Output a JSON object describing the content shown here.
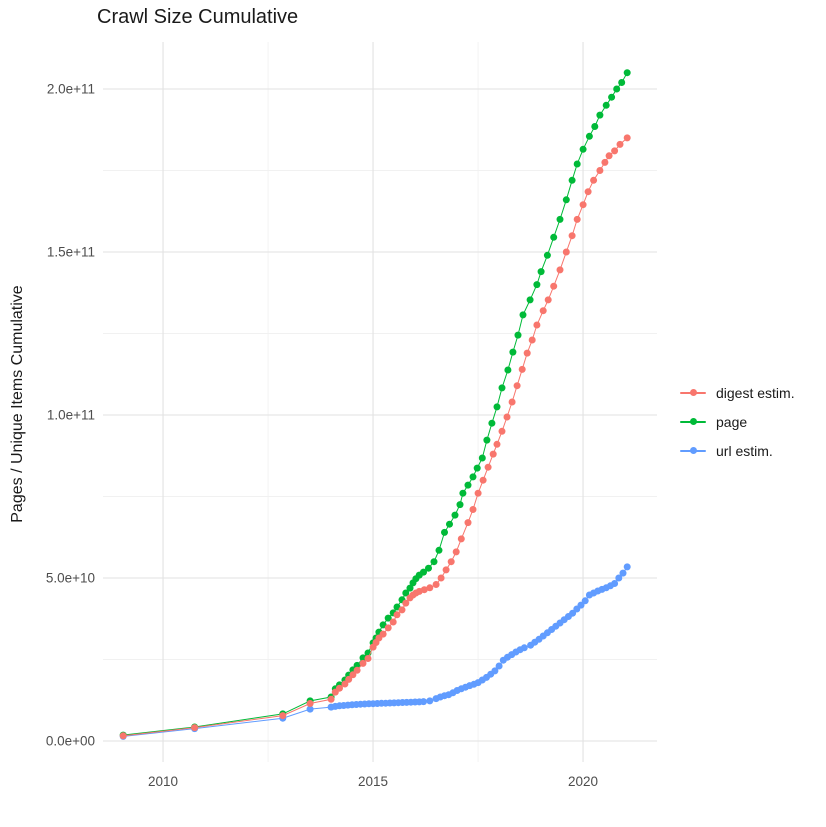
{
  "chart_data": {
    "type": "scatter",
    "title": "Crawl Size Cumulative",
    "ylabel": "Pages / Unique Items Cumulative",
    "xlabel": "",
    "value_unit": "points are [year, value_in_billions]; 1 billion = 1e9",
    "legend_position": "right",
    "grid": "on",
    "style": {
      "background": "#ffffff",
      "grid_major": "#e2e2e2",
      "grid_minor": "#f1f1f1",
      "text": "#4d4d4d"
    },
    "x_axis": {
      "range": [
        2008.57,
        2021.76
      ],
      "ticks": [
        {
          "value": 2010,
          "label": "2010"
        },
        {
          "value": 2015,
          "label": "2015"
        },
        {
          "value": 2020,
          "label": "2020"
        }
      ],
      "minor": [
        2012.5,
        2017.5
      ]
    },
    "y_axis": {
      "range": [
        -6400000000.0,
        214400000000.0
      ],
      "ticks": [
        {
          "value": 0.0,
          "label": "0.0e+00"
        },
        {
          "value": 50000000000.0,
          "label": "5.0e+10"
        },
        {
          "value": 100000000000.0,
          "label": "1.0e+11"
        },
        {
          "value": 150000000000.0,
          "label": "1.5e+11"
        },
        {
          "value": 200000000000.0,
          "label": "2.0e+11"
        }
      ],
      "minor": [
        25000000000.0,
        75000000000.0,
        125000000000.0,
        175000000000.0
      ]
    },
    "series": [
      {
        "name": "digest estim.",
        "color": "#F8766D",
        "points": [
          [
            2009.05,
            1.6
          ],
          [
            2010.75,
            4.1
          ],
          [
            2012.85,
            7.8
          ],
          [
            2013.5,
            11.5
          ],
          [
            2014.0,
            12.8
          ],
          [
            2014.1,
            15.0
          ],
          [
            2014.2,
            16.2
          ],
          [
            2014.33,
            17.5
          ],
          [
            2014.42,
            18.9
          ],
          [
            2014.52,
            20.3
          ],
          [
            2014.62,
            21.7
          ],
          [
            2014.76,
            23.8
          ],
          [
            2014.88,
            25.3
          ],
          [
            2015.0,
            28.8
          ],
          [
            2015.07,
            30.2
          ],
          [
            2015.14,
            31.6
          ],
          [
            2015.24,
            32.8
          ],
          [
            2015.36,
            34.7
          ],
          [
            2015.48,
            36.5
          ],
          [
            2015.57,
            38.7
          ],
          [
            2015.69,
            40.2
          ],
          [
            2015.78,
            42.3
          ],
          [
            2015.88,
            43.9
          ],
          [
            2015.95,
            44.8
          ],
          [
            2016.02,
            45.4
          ],
          [
            2016.1,
            45.9
          ],
          [
            2016.22,
            46.4
          ],
          [
            2016.35,
            47.0
          ],
          [
            2016.5,
            48.0
          ],
          [
            2016.62,
            50.0
          ],
          [
            2016.74,
            52.5
          ],
          [
            2016.86,
            55.0
          ],
          [
            2016.98,
            58.0
          ],
          [
            2017.1,
            62.0
          ],
          [
            2017.26,
            67.0
          ],
          [
            2017.38,
            71.0
          ],
          [
            2017.5,
            76.0
          ],
          [
            2017.62,
            80.0
          ],
          [
            2017.74,
            84.0
          ],
          [
            2017.86,
            88.0
          ],
          [
            2017.95,
            91.0
          ],
          [
            2018.07,
            95.0
          ],
          [
            2018.19,
            99.4
          ],
          [
            2018.31,
            104.0
          ],
          [
            2018.43,
            109.0
          ],
          [
            2018.55,
            114.0
          ],
          [
            2018.67,
            119.0
          ],
          [
            2018.79,
            123.0
          ],
          [
            2018.9,
            127.6
          ],
          [
            2019.05,
            132.0
          ],
          [
            2019.17,
            135.3
          ],
          [
            2019.3,
            139.5
          ],
          [
            2019.45,
            144.5
          ],
          [
            2019.6,
            150.0
          ],
          [
            2019.74,
            155.0
          ],
          [
            2019.86,
            160.0
          ],
          [
            2020.0,
            164.5
          ],
          [
            2020.12,
            168.5
          ],
          [
            2020.25,
            172.0
          ],
          [
            2020.4,
            175.0
          ],
          [
            2020.52,
            177.5
          ],
          [
            2020.62,
            179.5
          ],
          [
            2020.75,
            181.0
          ],
          [
            2020.88,
            183.0
          ],
          [
            2021.05,
            185.0
          ]
        ]
      },
      {
        "name": "page",
        "color": "#00BA38",
        "points": [
          [
            2009.05,
            1.8
          ],
          [
            2010.75,
            4.3
          ],
          [
            2012.85,
            8.3
          ],
          [
            2013.5,
            12.3
          ],
          [
            2014.0,
            13.5
          ],
          [
            2014.1,
            16.0
          ],
          [
            2014.2,
            17.2
          ],
          [
            2014.33,
            18.7
          ],
          [
            2014.42,
            20.2
          ],
          [
            2014.52,
            21.8
          ],
          [
            2014.62,
            23.2
          ],
          [
            2014.76,
            25.5
          ],
          [
            2014.88,
            27.0
          ],
          [
            2015.0,
            30.1
          ],
          [
            2015.07,
            31.6
          ],
          [
            2015.14,
            33.4
          ],
          [
            2015.24,
            35.6
          ],
          [
            2015.36,
            37.7
          ],
          [
            2015.48,
            39.3
          ],
          [
            2015.57,
            41.1
          ],
          [
            2015.69,
            43.3
          ],
          [
            2015.78,
            45.4
          ],
          [
            2015.88,
            46.9
          ],
          [
            2015.95,
            48.5
          ],
          [
            2016.02,
            49.8
          ],
          [
            2016.1,
            50.9
          ],
          [
            2016.2,
            51.8
          ],
          [
            2016.32,
            53.0
          ],
          [
            2016.45,
            55.0
          ],
          [
            2016.57,
            58.5
          ],
          [
            2016.7,
            64.0
          ],
          [
            2016.82,
            66.5
          ],
          [
            2016.95,
            69.3
          ],
          [
            2017.07,
            72.5
          ],
          [
            2017.14,
            76.0
          ],
          [
            2017.26,
            78.5
          ],
          [
            2017.38,
            81.0
          ],
          [
            2017.48,
            83.7
          ],
          [
            2017.6,
            86.8
          ],
          [
            2017.71,
            92.3
          ],
          [
            2017.83,
            97.5
          ],
          [
            2017.95,
            102.5
          ],
          [
            2018.07,
            108.3
          ],
          [
            2018.21,
            113.8
          ],
          [
            2018.33,
            119.3
          ],
          [
            2018.45,
            124.5
          ],
          [
            2018.57,
            130.7
          ],
          [
            2018.74,
            135.3
          ],
          [
            2018.9,
            140.0
          ],
          [
            2019.0,
            144.0
          ],
          [
            2019.15,
            149.0
          ],
          [
            2019.3,
            154.5
          ],
          [
            2019.45,
            160.0
          ],
          [
            2019.6,
            166.0
          ],
          [
            2019.74,
            172.0
          ],
          [
            2019.86,
            177.0
          ],
          [
            2020.0,
            181.5
          ],
          [
            2020.15,
            185.5
          ],
          [
            2020.28,
            188.5
          ],
          [
            2020.4,
            192.0
          ],
          [
            2020.55,
            195.0
          ],
          [
            2020.68,
            197.5
          ],
          [
            2020.8,
            200.0
          ],
          [
            2020.92,
            202.0
          ],
          [
            2021.05,
            205.0
          ]
        ]
      },
      {
        "name": "url estim.",
        "color": "#619CFF",
        "points": [
          [
            2009.05,
            1.4
          ],
          [
            2010.75,
            3.8
          ],
          [
            2012.85,
            7.0
          ],
          [
            2013.5,
            9.8
          ],
          [
            2014.0,
            10.4
          ],
          [
            2014.1,
            10.6
          ],
          [
            2014.2,
            10.8
          ],
          [
            2014.3,
            10.9
          ],
          [
            2014.4,
            11.0
          ],
          [
            2014.5,
            11.1
          ],
          [
            2014.6,
            11.2
          ],
          [
            2014.7,
            11.3
          ],
          [
            2014.8,
            11.35
          ],
          [
            2014.9,
            11.4
          ],
          [
            2015.0,
            11.45
          ],
          [
            2015.1,
            11.5
          ],
          [
            2015.2,
            11.55
          ],
          [
            2015.3,
            11.6
          ],
          [
            2015.4,
            11.65
          ],
          [
            2015.5,
            11.7
          ],
          [
            2015.6,
            11.75
          ],
          [
            2015.7,
            11.8
          ],
          [
            2015.8,
            11.85
          ],
          [
            2015.9,
            11.9
          ],
          [
            2016.0,
            11.95
          ],
          [
            2016.1,
            12.0
          ],
          [
            2016.2,
            12.1
          ],
          [
            2016.35,
            12.3
          ],
          [
            2016.5,
            13.0
          ],
          [
            2016.6,
            13.5
          ],
          [
            2016.7,
            13.9
          ],
          [
            2016.8,
            14.2
          ],
          [
            2016.9,
            14.8
          ],
          [
            2017.0,
            15.5
          ],
          [
            2017.1,
            16.0
          ],
          [
            2017.2,
            16.5
          ],
          [
            2017.3,
            17.0
          ],
          [
            2017.4,
            17.4
          ],
          [
            2017.5,
            17.9
          ],
          [
            2017.6,
            18.7
          ],
          [
            2017.7,
            19.5
          ],
          [
            2017.8,
            20.5
          ],
          [
            2017.9,
            21.5
          ],
          [
            2018.0,
            23.0
          ],
          [
            2018.1,
            24.8
          ],
          [
            2018.2,
            25.7
          ],
          [
            2018.3,
            26.5
          ],
          [
            2018.4,
            27.3
          ],
          [
            2018.5,
            28.0
          ],
          [
            2018.6,
            28.6
          ],
          [
            2018.75,
            29.4
          ],
          [
            2018.85,
            30.3
          ],
          [
            2018.95,
            31.2
          ],
          [
            2019.05,
            32.2
          ],
          [
            2019.15,
            33.2
          ],
          [
            2019.25,
            34.2
          ],
          [
            2019.35,
            35.2
          ],
          [
            2019.45,
            36.2
          ],
          [
            2019.55,
            37.2
          ],
          [
            2019.65,
            38.2
          ],
          [
            2019.75,
            39.2
          ],
          [
            2019.85,
            40.5
          ],
          [
            2019.95,
            41.7
          ],
          [
            2020.05,
            43.0
          ],
          [
            2020.15,
            44.8
          ],
          [
            2020.25,
            45.4
          ],
          [
            2020.35,
            46.0
          ],
          [
            2020.45,
            46.5
          ],
          [
            2020.55,
            47.0
          ],
          [
            2020.65,
            47.6
          ],
          [
            2020.75,
            48.3
          ],
          [
            2020.85,
            50.0
          ],
          [
            2020.95,
            51.5
          ],
          [
            2021.05,
            53.4
          ]
        ]
      }
    ]
  }
}
